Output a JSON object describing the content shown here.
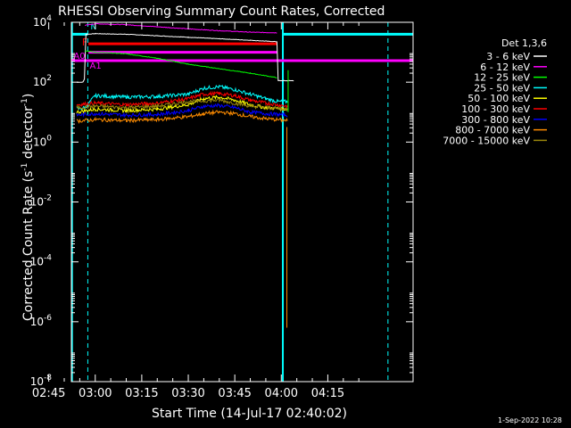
{
  "chart_data": {
    "type": "line",
    "title": "RHESSI Observing Summary Count Rates, Corrected",
    "xlabel": "Start Time (14-Jul-17 02:40:02)",
    "ylabel_main": "Corrected Count Rate (s",
    "ylabel_sup1": "-1",
    "ylabel_mid": " detector",
    "ylabel_sup2": "-1",
    "ylabel_end": ")",
    "y_scale": "log",
    "ylim": [
      1e-08,
      10000.0
    ],
    "xlim_minutes": [
      -7.7,
      102.5
    ],
    "x_tick_labels": [
      "02:45",
      "03:00",
      "03:15",
      "03:30",
      "03:45",
      "04:00",
      "04:15"
    ],
    "x_tick_minutes": [
      -15,
      0,
      15,
      30,
      45,
      60,
      75
    ],
    "y_ticks": [
      {
        "v": 4,
        "base": "10",
        "exp": "4"
      },
      {
        "v": 2,
        "base": "10",
        "exp": "2"
      },
      {
        "v": 0,
        "base": "10",
        "exp": "0"
      },
      {
        "v": -2,
        "base": "10",
        "exp": "-2"
      },
      {
        "v": -4,
        "base": "10",
        "exp": "-4"
      },
      {
        "v": -6,
        "base": "10",
        "exp": "-6"
      },
      {
        "v": -8,
        "base": "10",
        "exp": "-8"
      }
    ],
    "legend_title": "Det 1,3,6",
    "legend_position": "outside right",
    "series": [
      {
        "name": "3 - 6 keV",
        "color": "#ffffff",
        "t": [
          -6,
          -4,
          -3.5,
          -3,
          0,
          10,
          20,
          30,
          40,
          50,
          58.6,
          59,
          62,
          64
        ],
        "logy": [
          2.0,
          2.0,
          2.1,
          3.6,
          3.62,
          3.6,
          3.55,
          3.5,
          3.45,
          3.4,
          3.35,
          2.05,
          2.05,
          2.05
        ]
      },
      {
        "name": "6 - 12 keV",
        "color": "#ff00ff",
        "t": [
          -3.3,
          0,
          10,
          20,
          30,
          40,
          50,
          58.6
        ],
        "logy": [
          3.9,
          3.95,
          3.92,
          3.85,
          3.78,
          3.72,
          3.67,
          3.65
        ]
      },
      {
        "name": "12 - 25 keV",
        "color": "#00ff00",
        "t": [
          -3.3,
          0,
          10,
          20,
          30,
          40,
          50,
          58.6
        ],
        "logy": [
          3.05,
          3.0,
          2.95,
          2.8,
          2.6,
          2.45,
          2.3,
          2.15
        ]
      },
      {
        "name": "25 - 50 keV",
        "color": "#00ffff",
        "t": [
          -6,
          -3.3,
          0,
          10,
          20,
          30,
          35,
          40,
          45,
          50,
          55,
          59,
          62
        ],
        "logy": [
          1.1,
          1.15,
          1.55,
          1.5,
          1.52,
          1.6,
          1.8,
          1.85,
          1.75,
          1.6,
          1.45,
          1.35,
          1.35
        ]
      },
      {
        "name": "50 - 100 keV",
        "color": "#ffff00",
        "t": [
          -6,
          0,
          10,
          20,
          30,
          35,
          40,
          45,
          50,
          55,
          62
        ],
        "logy": [
          1.0,
          1.1,
          1.05,
          1.1,
          1.25,
          1.45,
          1.5,
          1.4,
          1.25,
          1.15,
          1.1
        ]
      },
      {
        "name": "100 - 300 keV",
        "color": "#ff0000",
        "t": [
          -6,
          0,
          10,
          20,
          30,
          35,
          40,
          45,
          50,
          55,
          62
        ],
        "logy": [
          1.25,
          1.3,
          1.25,
          1.3,
          1.45,
          1.6,
          1.62,
          1.55,
          1.4,
          1.3,
          1.2
        ]
      },
      {
        "name": "300 - 800 keV",
        "color": "#0000ff",
        "t": [
          -6,
          0,
          10,
          20,
          30,
          35,
          40,
          45,
          50,
          55,
          62
        ],
        "logy": [
          0.9,
          0.95,
          0.9,
          0.92,
          1.05,
          1.2,
          1.22,
          1.15,
          1.0,
          0.95,
          0.9
        ]
      },
      {
        "name": "800 - 7000 keV",
        "color": "#ff8c00",
        "t": [
          -6,
          0,
          10,
          20,
          30,
          35,
          40,
          45,
          50,
          55,
          62
        ],
        "logy": [
          0.7,
          0.75,
          0.72,
          0.75,
          0.85,
          0.95,
          1.0,
          0.95,
          0.85,
          0.78,
          0.72
        ]
      },
      {
        "name": "7000 - 15000 keV",
        "color": "#9b870c",
        "t": [
          -6,
          0,
          10,
          20,
          30,
          40,
          50,
          62
        ],
        "logy": [
          1.15,
          1.2,
          1.15,
          1.2,
          1.35,
          1.4,
          1.2,
          1.1
        ]
      }
    ],
    "markers": {
      "night_color": "#00ffff",
      "saa_dashed_minutes": [
        -2.4,
        94.4
      ],
      "solid_cyan_minutes": [
        -7.5,
        60.5
      ],
      "attenuator_label": "F",
      "attenuator_color": "#ff0000",
      "attenuator_start_minute": -2.2,
      "attenuator_end_minute": 58.6,
      "a0_label": "A0",
      "a1_label": "A1",
      "n_label": "N"
    },
    "timestamp": "1-Sep-2022 10:28"
  }
}
